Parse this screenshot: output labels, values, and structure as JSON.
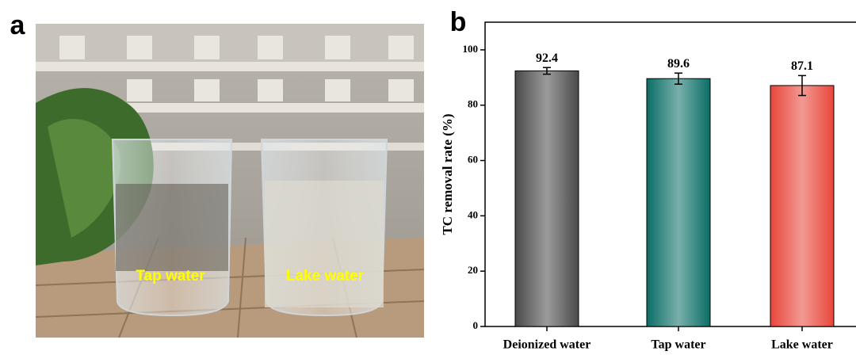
{
  "panels": {
    "a": {
      "label": "a",
      "photo_labels": [
        "Tap water",
        "Lake water"
      ]
    },
    "b": {
      "label": "b"
    }
  },
  "chart_data": {
    "type": "bar",
    "ylabel": "TC removal rate (%)",
    "categories": [
      "Deionized water",
      "Tap water",
      "Lake water"
    ],
    "values": [
      92.4,
      89.6,
      87.1
    ],
    "errors": [
      1.2,
      2.0,
      3.6
    ],
    "colors": [
      "#4a4a4a",
      "#0b6e66",
      "#e8463a"
    ],
    "ylim": [
      0,
      110
    ],
    "yticks": [
      0,
      20,
      40,
      60,
      80,
      100
    ]
  }
}
